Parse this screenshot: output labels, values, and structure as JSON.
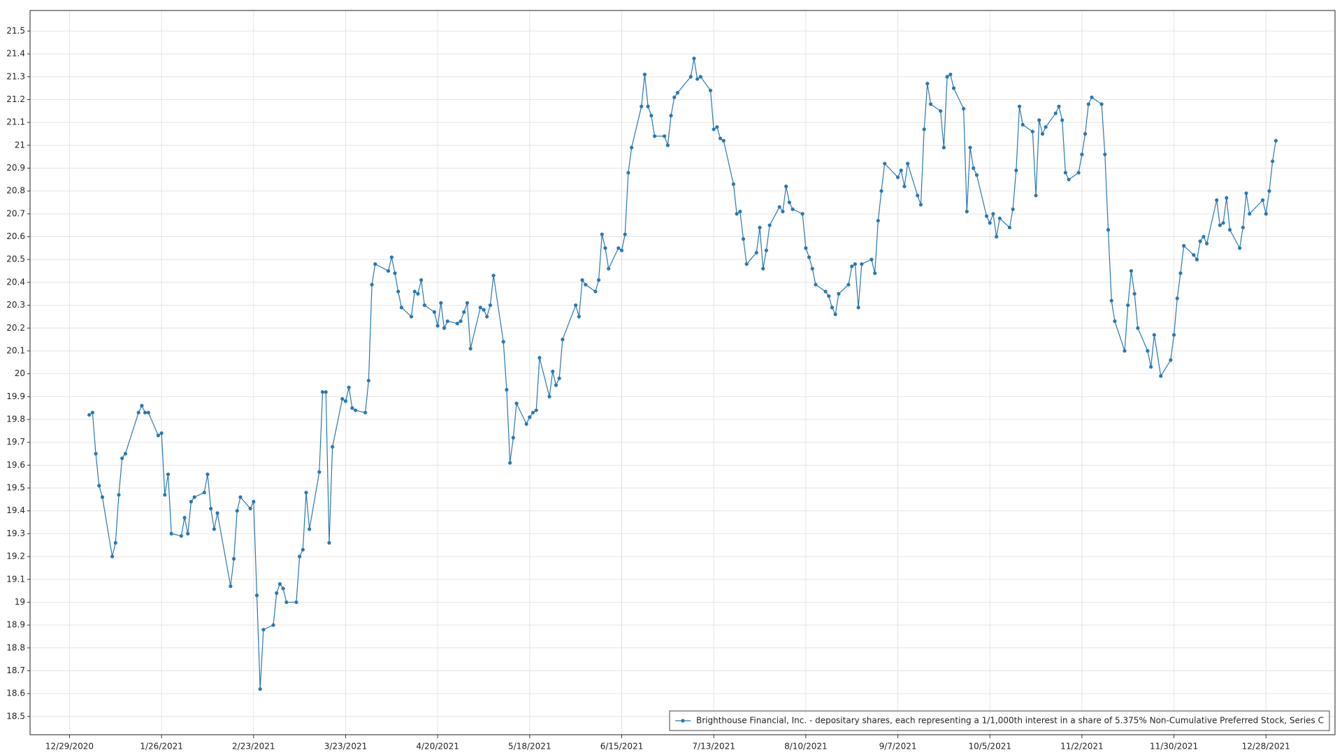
{
  "chart_data": {
    "type": "line",
    "x": [
      "1/4/2021",
      "1/5/2021",
      "1/6/2021",
      "1/7/2021",
      "1/8/2021",
      "1/11/2021",
      "1/12/2021",
      "1/13/2021",
      "1/14/2021",
      "1/15/2021",
      "1/19/2021",
      "1/20/2021",
      "1/21/2021",
      "1/22/2021",
      "1/25/2021",
      "1/26/2021",
      "1/27/2021",
      "1/28/2021",
      "1/29/2021",
      "2/1/2021",
      "2/2/2021",
      "2/3/2021",
      "2/4/2021",
      "2/5/2021",
      "2/8/2021",
      "2/9/2021",
      "2/10/2021",
      "2/11/2021",
      "2/12/2021",
      "2/16/2021",
      "2/17/2021",
      "2/18/2021",
      "2/19/2021",
      "2/22/2021",
      "2/23/2021",
      "2/24/2021",
      "2/25/2021",
      "2/26/2021",
      "3/1/2021",
      "3/2/2021",
      "3/3/2021",
      "3/4/2021",
      "3/5/2021",
      "3/8/2021",
      "3/9/2021",
      "3/10/2021",
      "3/11/2021",
      "3/12/2021",
      "3/15/2021",
      "3/16/2021",
      "3/17/2021",
      "3/18/2021",
      "3/19/2021",
      "3/22/2021",
      "3/23/2021",
      "3/24/2021",
      "3/25/2021",
      "3/26/2021",
      "3/29/2021",
      "3/30/2021",
      "3/31/2021",
      "4/1/2021",
      "4/5/2021",
      "4/6/2021",
      "4/7/2021",
      "4/8/2021",
      "4/9/2021",
      "4/12/2021",
      "4/13/2021",
      "4/14/2021",
      "4/15/2021",
      "4/16/2021",
      "4/19/2021",
      "4/20/2021",
      "4/21/2021",
      "4/22/2021",
      "4/23/2021",
      "4/26/2021",
      "4/27/2021",
      "4/28/2021",
      "4/29/2021",
      "4/30/2021",
      "5/3/2021",
      "5/4/2021",
      "5/5/2021",
      "5/6/2021",
      "5/7/2021",
      "5/10/2021",
      "5/11/2021",
      "5/12/2021",
      "5/13/2021",
      "5/14/2021",
      "5/17/2021",
      "5/18/2021",
      "5/19/2021",
      "5/20/2021",
      "5/21/2021",
      "5/24/2021",
      "5/25/2021",
      "5/26/2021",
      "5/27/2021",
      "5/28/2021",
      "6/1/2021",
      "6/2/2021",
      "6/3/2021",
      "6/4/2021",
      "6/7/2021",
      "6/8/2021",
      "6/9/2021",
      "6/10/2021",
      "6/11/2021",
      "6/14/2021",
      "6/15/2021",
      "6/16/2021",
      "6/17/2021",
      "6/18/2021",
      "6/21/2021",
      "6/22/2021",
      "6/23/2021",
      "6/24/2021",
      "6/25/2021",
      "6/28/2021",
      "6/29/2021",
      "6/30/2021",
      "7/1/2021",
      "7/2/2021",
      "7/6/2021",
      "7/7/2021",
      "7/8/2021",
      "7/9/2021",
      "7/12/2021",
      "7/13/2021",
      "7/14/2021",
      "7/15/2021",
      "7/16/2021",
      "7/19/2021",
      "7/20/2021",
      "7/21/2021",
      "7/22/2021",
      "7/23/2021",
      "7/26/2021",
      "7/27/2021",
      "7/28/2021",
      "7/29/2021",
      "7/30/2021",
      "8/2/2021",
      "8/3/2021",
      "8/4/2021",
      "8/5/2021",
      "8/6/2021",
      "8/9/2021",
      "8/10/2021",
      "8/11/2021",
      "8/12/2021",
      "8/13/2021",
      "8/16/2021",
      "8/17/2021",
      "8/18/2021",
      "8/19/2021",
      "8/20/2021",
      "8/23/2021",
      "8/24/2021",
      "8/25/2021",
      "8/26/2021",
      "8/27/2021",
      "8/30/2021",
      "8/31/2021",
      "9/1/2021",
      "9/2/2021",
      "9/3/2021",
      "9/7/2021",
      "9/8/2021",
      "9/9/2021",
      "9/10/2021",
      "9/13/2021",
      "9/14/2021",
      "9/15/2021",
      "9/16/2021",
      "9/17/2021",
      "9/20/2021",
      "9/21/2021",
      "9/22/2021",
      "9/23/2021",
      "9/24/2021",
      "9/27/2021",
      "9/28/2021",
      "9/29/2021",
      "9/30/2021",
      "10/1/2021",
      "10/4/2021",
      "10/5/2021",
      "10/6/2021",
      "10/7/2021",
      "10/8/2021",
      "10/11/2021",
      "10/12/2021",
      "10/13/2021",
      "10/14/2021",
      "10/15/2021",
      "10/18/2021",
      "10/19/2021",
      "10/20/2021",
      "10/21/2021",
      "10/22/2021",
      "10/25/2021",
      "10/26/2021",
      "10/27/2021",
      "10/28/2021",
      "10/29/2021",
      "11/1/2021",
      "11/2/2021",
      "11/3/2021",
      "11/4/2021",
      "11/5/2021",
      "11/8/2021",
      "11/9/2021",
      "11/10/2021",
      "11/11/2021",
      "11/12/2021",
      "11/15/2021",
      "11/16/2021",
      "11/17/2021",
      "11/18/2021",
      "11/19/2021",
      "11/22/2021",
      "11/23/2021",
      "11/24/2021",
      "11/26/2021",
      "11/29/2021",
      "11/30/2021",
      "12/1/2021",
      "12/2/2021",
      "12/3/2021",
      "12/6/2021",
      "12/7/2021",
      "12/8/2021",
      "12/9/2021",
      "12/10/2021",
      "12/13/2021",
      "12/14/2021",
      "12/15/2021",
      "12/16/2021",
      "12/17/2021",
      "12/20/2021",
      "12/21/2021",
      "12/22/2021",
      "12/23/2021",
      "12/27/2021",
      "12/28/2021",
      "12/29/2021",
      "12/30/2021",
      "12/31/2021"
    ],
    "series": [
      {
        "name": "Brighthouse Financial, Inc. - depositary shares, each representing a 1/1,000th interest in a share of 5.375% Non-Cumulative Preferred Stock, Series C",
        "color": "#2878b5",
        "values": [
          19.82,
          19.83,
          19.65,
          19.51,
          19.46,
          19.2,
          19.26,
          19.47,
          19.63,
          19.65,
          19.83,
          19.86,
          19.83,
          19.83,
          19.73,
          19.74,
          19.47,
          19.56,
          19.3,
          19.29,
          19.37,
          19.3,
          19.44,
          19.46,
          19.48,
          19.56,
          19.41,
          19.32,
          19.39,
          19.07,
          19.19,
          19.4,
          19.46,
          19.41,
          19.44,
          19.03,
          18.62,
          18.88,
          18.9,
          19.04,
          19.08,
          19.06,
          19.0,
          19.0,
          19.2,
          19.23,
          19.48,
          19.32,
          19.57,
          19.92,
          19.92,
          19.26,
          19.68,
          19.89,
          19.88,
          19.94,
          19.85,
          19.84,
          19.83,
          19.97,
          20.39,
          20.48,
          20.45,
          20.51,
          20.44,
          20.36,
          20.29,
          20.25,
          20.36,
          20.35,
          20.41,
          20.3,
          20.27,
          20.21,
          20.31,
          20.2,
          20.23,
          20.22,
          20.23,
          20.27,
          20.31,
          20.11,
          20.29,
          20.28,
          20.25,
          20.3,
          20.43,
          20.14,
          19.93,
          19.61,
          19.72,
          19.87,
          19.78,
          19.81,
          19.83,
          19.84,
          20.07,
          19.9,
          20.01,
          19.95,
          19.98,
          20.15,
          20.3,
          20.25,
          20.41,
          20.39,
          20.36,
          20.41,
          20.61,
          20.55,
          20.46,
          20.55,
          20.54,
          20.61,
          20.88,
          20.99,
          21.17,
          21.31,
          21.17,
          21.13,
          21.04,
          21.04,
          21.0,
          21.13,
          21.21,
          21.23,
          21.3,
          21.38,
          21.29,
          21.3,
          21.24,
          21.07,
          21.08,
          21.03,
          21.02,
          20.83,
          20.7,
          20.71,
          20.59,
          20.48,
          20.53,
          20.64,
          20.46,
          20.54,
          20.65,
          20.73,
          20.71,
          20.82,
          20.75,
          20.72,
          20.7,
          20.55,
          20.51,
          20.46,
          20.39,
          20.36,
          20.34,
          20.29,
          20.26,
          20.35,
          20.39,
          20.47,
          20.48,
          20.29,
          20.48,
          20.5,
          20.44,
          20.67,
          20.8,
          20.92,
          20.86,
          20.89,
          20.82,
          20.92,
          20.78,
          20.74,
          21.07,
          21.27,
          21.18,
          21.15,
          20.99,
          21.3,
          21.31,
          21.25,
          21.16,
          20.71,
          20.99,
          20.9,
          20.87,
          20.69,
          20.66,
          20.7,
          20.6,
          20.68,
          20.64,
          20.72,
          20.89,
          21.17,
          21.09,
          21.06,
          20.78,
          21.11,
          21.05,
          21.08,
          21.14,
          21.17,
          21.11,
          20.88,
          20.85,
          20.88,
          20.96,
          21.05,
          21.18,
          21.21,
          21.18,
          20.96,
          20.63,
          20.32,
          20.23,
          20.1,
          20.3,
          20.45,
          20.35,
          20.2,
          20.1,
          20.03,
          20.17,
          19.99,
          20.06,
          20.17,
          20.33,
          20.44,
          20.56,
          20.52,
          20.5,
          20.58,
          20.6,
          20.57,
          20.76,
          20.65,
          20.66,
          20.77,
          20.63,
          20.55,
          20.64,
          20.79,
          20.7,
          20.76,
          20.7,
          20.8,
          20.93,
          21.02
        ]
      }
    ],
    "xlim": [
      "12/17/2020",
      "1/18/2022"
    ],
    "xticks": [
      "12/29/2020",
      "1/26/2021",
      "2/23/2021",
      "3/23/2021",
      "4/20/2021",
      "5/18/2021",
      "6/15/2021",
      "7/13/2021",
      "8/10/2021",
      "9/7/2021",
      "10/5/2021",
      "11/2/2021",
      "11/30/2021",
      "12/28/2021"
    ],
    "ylim": [
      18.42,
      21.59
    ],
    "yticks": [
      18.5,
      18.6,
      18.7,
      18.8,
      18.9,
      19,
      19.1,
      19.2,
      19.3,
      19.4,
      19.5,
      19.6,
      19.7,
      19.8,
      19.9,
      20,
      20.1,
      20.2,
      20.3,
      20.4,
      20.5,
      20.6,
      20.7,
      20.8,
      20.9,
      21,
      21.1,
      21.2,
      21.3,
      21.4,
      21.5
    ],
    "grid": true,
    "legend": "lower right",
    "markers": true
  }
}
